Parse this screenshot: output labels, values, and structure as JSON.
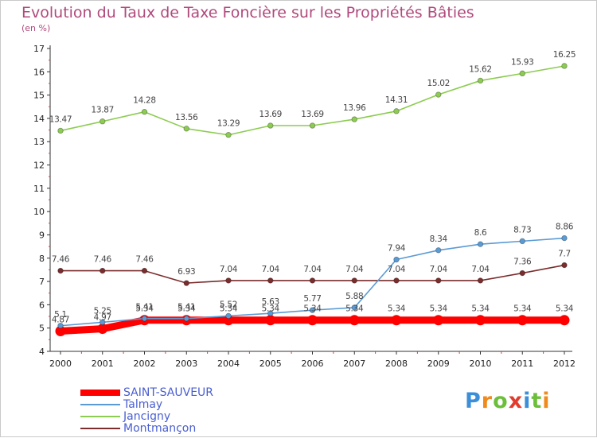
{
  "chart_data": {
    "type": "line",
    "title": "Evolution du Taux de Taxe Foncière sur les Propriétés Bâties",
    "ylabel": "(en %)",
    "xlabel": "",
    "ylim": [
      4,
      17
    ],
    "yticks": [
      "4",
      "5",
      "6",
      "7",
      "8",
      "9",
      "10",
      "11",
      "12",
      "13",
      "14",
      "15",
      "16",
      "17"
    ],
    "categories": [
      "2000",
      "2001",
      "2002",
      "2003",
      "2004",
      "2005",
      "2006",
      "2007",
      "2008",
      "2009",
      "2010",
      "2011",
      "2012"
    ],
    "series": [
      {
        "name": "SAINT-SAUVEUR",
        "color": "#ff0000",
        "values": [
          4.87,
          4.97,
          5.34,
          5.34,
          5.34,
          5.34,
          5.34,
          5.34,
          5.34,
          5.34,
          5.34,
          5.34,
          5.34
        ],
        "labels": [
          "4.87",
          "4.97",
          "5.34",
          "5.34",
          "5.34",
          "5.34",
          "5.34",
          "5.34",
          "5.34",
          "5.34",
          "5.34",
          "5.34",
          "5.34"
        ]
      },
      {
        "name": "Talmay",
        "color": "#5b9bd5",
        "values": [
          5.1,
          5.25,
          5.41,
          5.41,
          5.52,
          5.63,
          5.77,
          5.88,
          7.94,
          8.34,
          8.6,
          8.73,
          8.86
        ],
        "labels": [
          "5.1",
          "5.25",
          "5.41",
          "5.41",
          "5.52",
          "5.63",
          "5.77",
          "5.88",
          "7.94",
          "8.34",
          "8.6",
          "8.73",
          "8.86"
        ]
      },
      {
        "name": "Jancigny",
        "color": "#8ccc50",
        "values": [
          13.47,
          13.87,
          14.28,
          13.56,
          13.29,
          13.69,
          13.69,
          13.96,
          14.31,
          15.02,
          15.62,
          15.93,
          16.25
        ],
        "labels": [
          "13.47",
          "13.87",
          "14.28",
          "13.56",
          "13.29",
          "13.69",
          "13.69",
          "13.96",
          "14.31",
          "15.02",
          "15.62",
          "15.93",
          "16.25"
        ]
      },
      {
        "name": "Montmançon",
        "color": "#7b2c2c",
        "values": [
          7.46,
          7.46,
          7.46,
          6.93,
          7.04,
          7.04,
          7.04,
          7.04,
          7.04,
          7.04,
          7.04,
          7.36,
          7.7
        ],
        "labels": [
          "7.46",
          "7.46",
          "7.46",
          "6.93",
          "7.04",
          "7.04",
          "7.04",
          "7.04",
          "7.04",
          "7.04",
          "7.04",
          "7.36",
          "7.7"
        ]
      }
    ]
  },
  "legend": {
    "items": [
      {
        "label": "SAINT-SAUVEUR",
        "color": "#ff0000",
        "text_color": "#4a5fd0"
      },
      {
        "label": "Talmay",
        "color": "#5b9bd5",
        "text_color": "#4a5fd0"
      },
      {
        "label": "Jancigny",
        "color": "#8ccc50",
        "text_color": "#4a5fd0"
      },
      {
        "label": "Montmançon",
        "color": "#7b2c2c",
        "text_color": "#4a5fd0"
      }
    ]
  },
  "logo": {
    "text": "Proxiti",
    "letter_colors": [
      "#3a8fd8",
      "#f08a1c",
      "#6cbf3a",
      "#e23b2e",
      "#3a8fd8",
      "#6cbf3a",
      "#f08a1c"
    ]
  }
}
